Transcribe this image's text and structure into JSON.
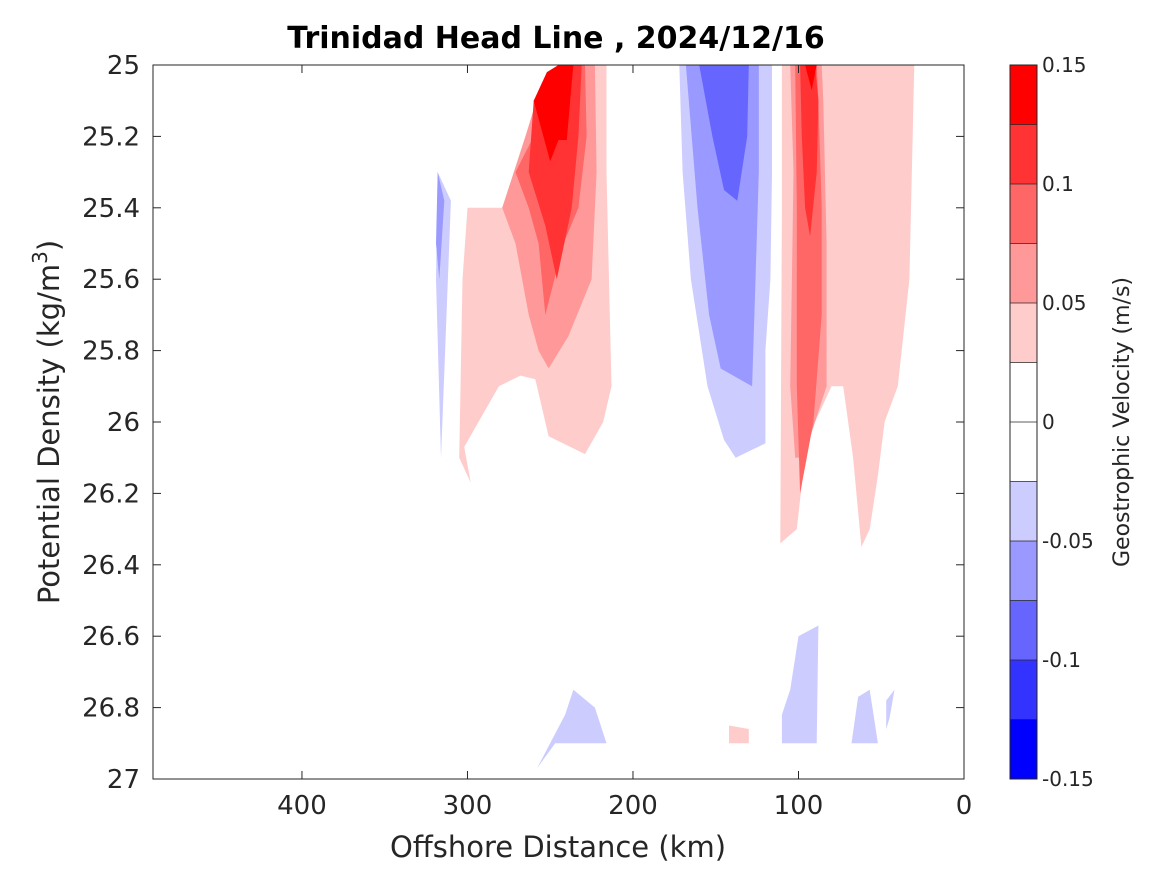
{
  "chart_data": {
    "type": "contourf",
    "title": "Trinidad Head Line , 2024/12/16",
    "xlabel": "Offshore Distance (km)",
    "ylabel": "Potential Density (kg/m",
    "ylabel_sup": "3",
    "ylabel_close": ")",
    "xlim": [
      490,
      0
    ],
    "x_reversed": true,
    "ylim": [
      25,
      27
    ],
    "y_reversed": true,
    "xticks": [
      400,
      300,
      200,
      100,
      0
    ],
    "yticks": [
      25,
      25.2,
      25.4,
      25.6,
      25.8,
      26,
      26.2,
      26.4,
      26.6,
      26.8,
      27
    ],
    "ytick_labels": [
      "25",
      "25.2",
      "25.4",
      "25.6",
      "25.8",
      "26",
      "26.2",
      "26.4",
      "26.6",
      "26.8",
      "27"
    ],
    "grid": false,
    "colorbar": {
      "label": "Geostrophic Velocity (m/s)",
      "range": [
        -0.15,
        0.15
      ],
      "tick_labels": [
        "0.15",
        "0.1",
        "0.05",
        "0",
        "-0.05",
        "-0.1",
        "-0.15"
      ],
      "tick_values": [
        0.15,
        0.1,
        0.05,
        0,
        -0.05,
        -0.1,
        -0.15
      ],
      "levels": [
        {
          "from": 0.125,
          "to": 0.15,
          "color": "#ff0000"
        },
        {
          "from": 0.1,
          "to": 0.125,
          "color": "#ff3333"
        },
        {
          "from": 0.075,
          "to": 0.1,
          "color": "#ff6666"
        },
        {
          "from": 0.05,
          "to": 0.075,
          "color": "#ff9999"
        },
        {
          "from": 0.025,
          "to": 0.05,
          "color": "#ffcccc"
        },
        {
          "from": 0,
          "to": 0.025,
          "color": "#ffffff"
        },
        {
          "from": -0.025,
          "to": 0,
          "color": "#ffffff"
        },
        {
          "from": -0.05,
          "to": -0.025,
          "color": "#ccccff"
        },
        {
          "from": -0.075,
          "to": -0.05,
          "color": "#9999ff"
        },
        {
          "from": -0.1,
          "to": -0.075,
          "color": "#6666ff"
        },
        {
          "from": -0.125,
          "to": -0.1,
          "color": "#3333ff"
        },
        {
          "from": -0.15,
          "to": -0.125,
          "color": "#0000ff"
        }
      ]
    },
    "regions": [
      {
        "name": "cyclonic-west-lvl1",
        "color": "#ccccff",
        "points": [
          [
            318,
            25.3
          ],
          [
            310,
            25.38
          ],
          [
            316,
            26.1
          ],
          [
            319,
            25.6
          ]
        ]
      },
      {
        "name": "cyclonic-west-lvl2",
        "color": "#9999ff",
        "points": [
          [
            318,
            25.3
          ],
          [
            314,
            25.38
          ],
          [
            317,
            25.6
          ],
          [
            319,
            25.5
          ]
        ]
      },
      {
        "name": "jet1-lvl1",
        "color": "#ffcccc",
        "points": [
          [
            245,
            25
          ],
          [
            216,
            25
          ],
          [
            216,
            25.3
          ],
          [
            213,
            25.9
          ],
          [
            218,
            26
          ],
          [
            229,
            26.09
          ],
          [
            251,
            26.04
          ],
          [
            259,
            25.88
          ],
          [
            268,
            25.87
          ],
          [
            281,
            25.9
          ],
          [
            302,
            26.07
          ],
          [
            298,
            26.17
          ],
          [
            305,
            26.1
          ],
          [
            303,
            25.6
          ],
          [
            300,
            25.4
          ],
          [
            279,
            25.4
          ],
          [
            260,
            25.2
          ],
          [
            245,
            25
          ]
        ]
      },
      {
        "name": "jet1-lvl2",
        "color": "#ff9999",
        "points": [
          [
            245,
            25
          ],
          [
            223,
            25
          ],
          [
            222,
            25.3
          ],
          [
            225,
            25.6
          ],
          [
            239,
            25.76
          ],
          [
            251,
            25.85
          ],
          [
            257,
            25.8
          ],
          [
            263,
            25.7
          ],
          [
            271,
            25.5
          ],
          [
            279,
            25.4
          ],
          [
            265,
            25.2
          ],
          [
            255,
            25.05
          ],
          [
            245,
            25
          ]
        ]
      },
      {
        "name": "jet1-lvl3",
        "color": "#ff6666",
        "points": [
          [
            243,
            25
          ],
          [
            229,
            25
          ],
          [
            228,
            25.2
          ],
          [
            233,
            25.4
          ],
          [
            242,
            25.5
          ],
          [
            253,
            25.7
          ],
          [
            257,
            25.5
          ],
          [
            263,
            25.4
          ],
          [
            271,
            25.3
          ],
          [
            260,
            25.2
          ],
          [
            250,
            25.05
          ],
          [
            243,
            25
          ]
        ]
      },
      {
        "name": "jet1-lvl4",
        "color": "#ff3333",
        "points": [
          [
            238,
            25
          ],
          [
            231,
            25
          ],
          [
            233,
            25.2
          ],
          [
            237,
            25.4
          ],
          [
            246,
            25.6
          ],
          [
            253,
            25.45
          ],
          [
            263,
            25.3
          ],
          [
            260,
            25.1
          ],
          [
            250,
            25.03
          ],
          [
            238,
            25
          ]
        ]
      },
      {
        "name": "jet1-lvl5",
        "color": "#ff0000",
        "points": [
          [
            245,
            25
          ],
          [
            236,
            25
          ],
          [
            237,
            25.05
          ],
          [
            240,
            25.21
          ],
          [
            245,
            25.21
          ],
          [
            250,
            25.27
          ],
          [
            260,
            25.1
          ],
          [
            252,
            25.02
          ],
          [
            245,
            25
          ]
        ]
      },
      {
        "name": "counter-current-lvl1",
        "color": "#ccccff",
        "points": [
          [
            172,
            25
          ],
          [
            170,
            25.3
          ],
          [
            165,
            25.6
          ],
          [
            155,
            25.9
          ],
          [
            145,
            26.05
          ],
          [
            138,
            26.1
          ],
          [
            120,
            26.06
          ],
          [
            120,
            25.8
          ],
          [
            117,
            25.6
          ],
          [
            116,
            25.3
          ],
          [
            116,
            25
          ]
        ]
      },
      {
        "name": "counter-current-lvl2",
        "color": "#9999ff",
        "points": [
          [
            168,
            25
          ],
          [
            161,
            25.4
          ],
          [
            154,
            25.7
          ],
          [
            147,
            25.85
          ],
          [
            128,
            25.9
          ],
          [
            126,
            25.6
          ],
          [
            124,
            25.3
          ],
          [
            124,
            25
          ]
        ]
      },
      {
        "name": "counter-current-lvl3",
        "color": "#6666ff",
        "points": [
          [
            160,
            25
          ],
          [
            152,
            25.2
          ],
          [
            145,
            25.35
          ],
          [
            137,
            25.38
          ],
          [
            131,
            25.2
          ],
          [
            130,
            25
          ]
        ]
      },
      {
        "name": "jet2-lvl1",
        "color": "#ffcccc",
        "points": [
          [
            110,
            25
          ],
          [
            110,
            25.4
          ],
          [
            111,
            26.34
          ],
          [
            101,
            26.3
          ],
          [
            95,
            26.05
          ],
          [
            90,
            26.0
          ],
          [
            80,
            25.9
          ],
          [
            73,
            25.9
          ],
          [
            67,
            26.1
          ],
          [
            62,
            26.35
          ],
          [
            57,
            26.3
          ],
          [
            52,
            26.15
          ],
          [
            48,
            26.0
          ],
          [
            40,
            25.9
          ],
          [
            33,
            25.6
          ],
          [
            30,
            25.0
          ]
        ]
      },
      {
        "name": "jet2-lvl2",
        "color": "#ff9999",
        "points": [
          [
            105,
            25
          ],
          [
            103,
            25.3
          ],
          [
            104,
            25.6
          ],
          [
            105,
            25.9
          ],
          [
            102,
            26.1
          ],
          [
            97,
            26.1
          ],
          [
            90,
            26.0
          ],
          [
            83,
            25.9
          ],
          [
            83,
            25.5
          ],
          [
            85,
            25.1
          ],
          [
            86,
            25.0
          ]
        ]
      },
      {
        "name": "jet2-lvl3",
        "color": "#ff6666",
        "points": [
          [
            102,
            25
          ],
          [
            101,
            25.4
          ],
          [
            101,
            25.9
          ],
          [
            99,
            26.2
          ],
          [
            91,
            26.0
          ],
          [
            86,
            25.7
          ],
          [
            86,
            25.4
          ],
          [
            88,
            25.1
          ],
          [
            89,
            25
          ]
        ]
      },
      {
        "name": "jet2-lvl4",
        "color": "#ff3333",
        "points": [
          [
            99,
            25
          ],
          [
            98,
            25.2
          ],
          [
            96,
            25.4
          ],
          [
            93,
            25.48
          ],
          [
            89,
            25.3
          ],
          [
            88,
            25.1
          ],
          [
            90,
            25
          ]
        ]
      },
      {
        "name": "jet2-lvl5",
        "color": "#ff0000",
        "points": [
          [
            96,
            25
          ],
          [
            92,
            25.07
          ],
          [
            89,
            25.0
          ]
        ]
      },
      {
        "name": "deep-blue-a",
        "color": "#ccccff",
        "points": [
          [
            258,
            26.97
          ],
          [
            247,
            26.9
          ],
          [
            216,
            26.9
          ],
          [
            223,
            26.8
          ],
          [
            236,
            26.75
          ],
          [
            241,
            26.82
          ],
          [
            258,
            26.97
          ]
        ]
      },
      {
        "name": "deep-pink",
        "color": "#ffcccc",
        "points": [
          [
            142,
            26.9
          ],
          [
            130,
            26.9
          ],
          [
            130,
            26.86
          ],
          [
            142,
            26.85
          ]
        ]
      },
      {
        "name": "deep-blue-b",
        "color": "#ccccff",
        "points": [
          [
            110,
            26.9
          ],
          [
            89,
            26.9
          ],
          [
            88,
            26.57
          ],
          [
            100,
            26.6
          ],
          [
            105,
            26.75
          ],
          [
            110,
            26.82
          ]
        ]
      },
      {
        "name": "deep-blue-c",
        "color": "#ccccff",
        "points": [
          [
            68,
            26.9
          ],
          [
            52,
            26.9
          ],
          [
            57,
            26.75
          ],
          [
            64,
            26.77
          ]
        ]
      },
      {
        "name": "deep-blue-d",
        "color": "#ccccff",
        "points": [
          [
            47,
            26.86
          ],
          [
            45,
            26.83
          ],
          [
            42,
            26.75
          ],
          [
            47,
            26.78
          ]
        ]
      }
    ]
  }
}
